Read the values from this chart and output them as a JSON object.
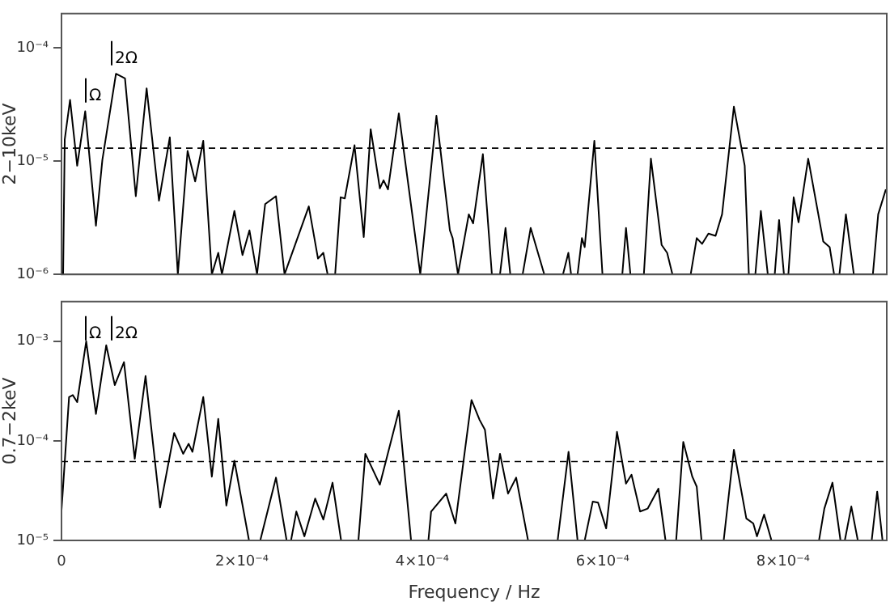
{
  "chart_data": [
    {
      "type": "line",
      "ylabel": "2−10keV",
      "log": "y",
      "grid": false,
      "legend": false,
      "marker": "none",
      "line_style": "solid",
      "tick_labels": "y",
      "xlim": [
        0,
        0.000915
      ],
      "xticks": [
        {
          "value": 0,
          "label": null
        },
        {
          "value": 0.0002,
          "label": null
        },
        {
          "value": 0.0004,
          "label": null
        },
        {
          "value": 0.0006,
          "label": null
        },
        {
          "value": 0.0008,
          "label": null
        }
      ],
      "ylim": [
        1e-06,
        0.0002
      ],
      "yticks": [
        {
          "value": 1e-06,
          "label": "10⁻⁶"
        },
        {
          "value": 1e-05,
          "label": "10⁻⁵"
        },
        {
          "value": 0.0001,
          "label": "10⁻⁴"
        }
      ],
      "ref_lines": [
        {
          "axis": "y",
          "value": 1.3e-05,
          "line_style": "dashed"
        }
      ],
      "annotations": [
        "Ω",
        "2Ω"
      ],
      "series": [
        {
          "color": "#000000",
          "x": [
            1.8e-06,
            3.6e-06,
            9.5e-06,
            1.74e-05,
            2.63e-05,
            3.82e-05,
            4.53e-05,
            6.04e-05,
            7.04e-05,
            8.24e-05,
            9.44e-05,
            0.0001081,
            0.0001201,
            0.000129,
            0.0001398,
            0.0001482,
            0.0001572,
            0.0001667,
            0.0001738,
            0.0001779,
            0.0001917,
            0.0002007,
            0.0002084,
            0.0002168,
            0.0002258,
            0.0002378,
            0.0002473,
            0.0002742,
            0.0002844,
            0.0002903,
            0.0002951,
            0.0003034,
            0.0003095,
            0.0003141,
            0.0003249,
            0.0003351,
            0.0003428,
            0.000353,
            0.0003571,
            0.000362,
            0.000374,
            0.0003978,
            0.0004157,
            0.0004306,
            0.0004337,
            0.0004396,
            0.0004516,
            0.0004564,
            0.0004672,
            0.0004772,
            0.0004862,
            0.0004923,
            0.0004976,
            0.0005113,
            0.0005202,
            0.0005353,
            0.000556,
            0.000562,
            0.000565,
            0.0005722,
            0.000577,
            0.0005801,
            0.0005908,
            0.0005998,
            0.0006218,
            0.0006259,
            0.0006308,
            0.0006457,
            0.0006535,
            0.0006654,
            0.0006715,
            0.0006774,
            0.0006976,
            0.0007043,
            0.0007102,
            0.0007173,
            0.0007252,
            0.0007324,
            0.0007455,
            0.0007575,
            0.0007621,
            0.0007693,
            0.0007754,
            0.0007831,
            0.0007908,
            0.0007956,
            0.000801,
            0.0008059,
            0.0008118,
            0.0008172,
            0.0008279,
            0.0008446,
            0.0008517,
            0.0008566,
            0.0008625,
            0.0008697,
            0.0008785,
            0.0008996,
            0.0009055,
            0.000914
          ],
          "values": [
            1e-06,
            1.55e-05,
            3.47e-05,
            9.1e-06,
            2.75e-05,
            2.69e-06,
            1.02e-05,
            5.89e-05,
            5.37e-05,
            4.9e-06,
            4.37e-05,
            4.47e-06,
            1.62e-05,
            1e-06,
            1.23e-05,
            6.61e-06,
            1.51e-05,
            1e-06,
            1.55e-06,
            1e-06,
            3.63e-06,
            1.48e-06,
            2.45e-06,
            1e-06,
            4.17e-06,
            4.9e-06,
            1e-06,
            3.98e-06,
            1.38e-06,
            1.55e-06,
            1e-06,
            1e-06,
            4.79e-06,
            4.68e-06,
            1.38e-05,
            2.14e-06,
            1.91e-05,
            5.75e-06,
            6.76e-06,
            5.62e-06,
            2.63e-05,
            1e-06,
            2.51e-05,
            2.45e-06,
            2.09e-06,
            1e-06,
            3.39e-06,
            2.82e-06,
            1.15e-05,
            1e-06,
            1e-06,
            2.57e-06,
            1e-06,
            1e-06,
            2.57e-06,
            1e-06,
            1e-06,
            1.55e-06,
            1e-06,
            1e-06,
            2.09e-06,
            1.74e-06,
            1.51e-05,
            1e-06,
            1e-06,
            2.57e-06,
            1e-06,
            1e-06,
            1.05e-05,
            1.82e-06,
            1.55e-06,
            1e-06,
            1e-06,
            2.09e-06,
            1.86e-06,
            2.29e-06,
            2.19e-06,
            3.39e-06,
            3.02e-05,
            9.1e-06,
            1e-06,
            1e-06,
            3.63e-06,
            1e-06,
            1e-06,
            3.02e-06,
            1e-06,
            1e-06,
            4.79e-06,
            2.88e-06,
            1.05e-05,
            1.95e-06,
            1.74e-06,
            1e-06,
            1e-06,
            3.39e-06,
            1e-06,
            1e-06,
            3.39e-06,
            5.62e-06
          ]
        }
      ]
    },
    {
      "type": "line",
      "ylabel": "0.7−2keV",
      "xlabel": "Frequency / Hz",
      "log": "y",
      "grid": false,
      "legend": false,
      "marker": "none",
      "line_style": "solid",
      "xlim": [
        0,
        0.000915
      ],
      "xticks": [
        0,
        {
          "value": 0.0002,
          "label": "2×10⁻⁴"
        },
        {
          "value": 0.0004,
          "label": "4×10⁻⁴"
        },
        {
          "value": 0.0006,
          "label": "6×10⁻⁴"
        },
        {
          "value": 0.0008,
          "label": "8×10⁻⁴"
        }
      ],
      "ylim": [
        1e-05,
        0.0025
      ],
      "yticks": [
        {
          "value": 1e-05,
          "label": "10⁻⁵"
        },
        {
          "value": 0.0001,
          "label": "10⁻⁴"
        },
        {
          "value": 0.001,
          "label": "10⁻³"
        }
      ],
      "ref_lines": [
        {
          "axis": "y",
          "value": 6.2e-05,
          "line_style": "dashed"
        }
      ],
      "annotations": [
        "Ω",
        "2Ω"
      ],
      "series": [
        {
          "color": "#000000",
          "x": [
            0,
            8.4e-06,
            1.25e-05,
            1.74e-05,
            2.74e-05,
            3.82e-05,
            4.96e-05,
            5.91e-05,
            6.93e-05,
            8.12e-05,
            9.32e-05,
            0.0001093,
            0.0001249,
            0.0001349,
            0.000141,
            0.0001452,
            0.0001572,
            0.0001667,
            0.0001738,
            0.0001828,
            0.0001917,
            0.0002079,
            0.0002204,
            0.0002378,
            0.0002496,
            0.0002545,
            0.0002604,
            0.0002693,
            0.0002813,
            0.0002903,
            0.0003005,
            0.00031,
            0.000319,
            0.0003292,
            0.0003369,
            0.000353,
            0.000374,
            0.0003876,
            0.0004068,
            0.0004098,
            0.0004265,
            0.0004367,
            0.0004546,
            0.0004636,
            0.0004695,
            0.0004785,
            0.0004862,
            0.0004951,
            0.0005041,
            0.0005173,
            0.0005501,
            0.0005622,
            0.0005722,
            0.0005801,
            0.000589,
            0.0005949,
            0.0006039,
            0.0006159,
            0.0006259,
            0.000632,
            0.0006415,
            0.00065,
            0.0006618,
            0.0006697,
            0.0006815,
            0.0006894,
            0.0006994,
            0.0007043,
            0.0007096,
            0.0007342,
            0.0007455,
            0.0007593,
            0.000767,
            0.0007711,
            0.000779,
            0.0007872,
            0.0008399,
            0.0008458,
            0.0008548,
            0.0008637,
            0.0008685,
            0.0008757,
            0.0008829,
            0.0008983,
            0.0009044,
            0.0009103,
            0.000914
          ],
          "values": [
            2e-05,
            0.000275,
            0.000288,
            0.000245,
            0.001,
            0.000186,
            0.00091,
            0.000363,
            0.000617,
            6.61e-05,
            0.000447,
            2.14e-05,
            0.00012,
            7.41e-05,
            9.33e-05,
            7.76e-05,
            0.000275,
            4.37e-05,
            0.000166,
            2.24e-05,
            6.31e-05,
            1e-05,
            1e-05,
            4.27e-05,
            1e-05,
            1e-05,
            1.95e-05,
            1.1e-05,
            2.63e-05,
            1.62e-05,
            3.8e-05,
            1e-05,
            1e-05,
            1e-05,
            7.41e-05,
            3.63e-05,
            0.0002,
            1e-05,
            1e-05,
            1.95e-05,
            2.95e-05,
            1.48e-05,
            0.000257,
            0.000162,
            0.000129,
            2.63e-05,
            7.41e-05,
            2.95e-05,
            4.27e-05,
            1e-05,
            1e-05,
            7.76e-05,
            1e-05,
            1e-05,
            2.45e-05,
            2.4e-05,
            1.32e-05,
            0.000123,
            3.72e-05,
            4.57e-05,
            1.95e-05,
            2.09e-05,
            3.31e-05,
            1e-05,
            1e-05,
            9.77e-05,
            4.37e-05,
            3.47e-05,
            1e-05,
            1e-05,
            8.13e-05,
            1.66e-05,
            1.48e-05,
            1.1e-05,
            1.82e-05,
            1e-05,
            1e-05,
            2.09e-05,
            3.8e-05,
            1e-05,
            1e-05,
            2.19e-05,
            1e-05,
            1e-05,
            3.09e-05,
            1e-05,
            1e-05
          ]
        }
      ]
    }
  ]
}
